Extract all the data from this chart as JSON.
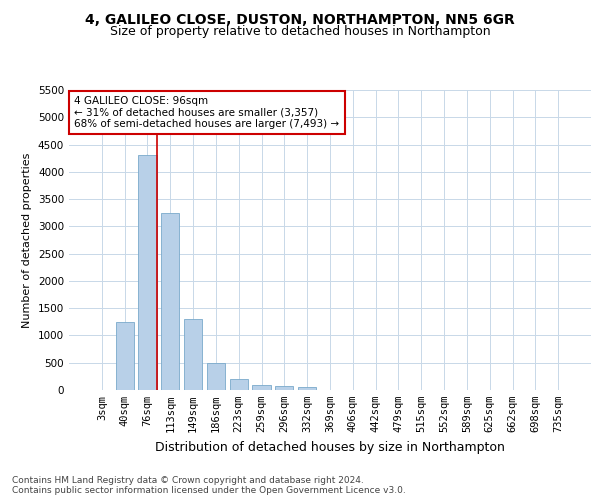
{
  "title1": "4, GALILEO CLOSE, DUSTON, NORTHAMPTON, NN5 6GR",
  "title2": "Size of property relative to detached houses in Northampton",
  "xlabel": "Distribution of detached houses by size in Northampton",
  "ylabel": "Number of detached properties",
  "categories": [
    "3sqm",
    "40sqm",
    "76sqm",
    "113sqm",
    "149sqm",
    "186sqm",
    "223sqm",
    "259sqm",
    "296sqm",
    "332sqm",
    "369sqm",
    "406sqm",
    "442sqm",
    "479sqm",
    "515sqm",
    "552sqm",
    "589sqm",
    "625sqm",
    "662sqm",
    "698sqm",
    "735sqm"
  ],
  "values": [
    0,
    1250,
    4300,
    3250,
    1300,
    500,
    200,
    100,
    75,
    50,
    0,
    0,
    0,
    0,
    0,
    0,
    0,
    0,
    0,
    0,
    0
  ],
  "bar_color": "#b8d0e8",
  "bar_edgecolor": "#7aaacb",
  "vline_x_index": 2.4,
  "vline_color": "#cc0000",
  "annotation_text": "4 GALILEO CLOSE: 96sqm\n← 31% of detached houses are smaller (3,357)\n68% of semi-detached houses are larger (7,493) →",
  "annotation_box_edgecolor": "#cc0000",
  "annotation_box_facecolor": "#ffffff",
  "ylim": [
    0,
    5500
  ],
  "yticks": [
    0,
    500,
    1000,
    1500,
    2000,
    2500,
    3000,
    3500,
    4000,
    4500,
    5000,
    5500
  ],
  "footer": "Contains HM Land Registry data © Crown copyright and database right 2024.\nContains public sector information licensed under the Open Government Licence v3.0.",
  "title1_fontsize": 10,
  "title2_fontsize": 9,
  "xlabel_fontsize": 9,
  "ylabel_fontsize": 8,
  "tick_fontsize": 7.5,
  "footer_fontsize": 6.5,
  "background_color": "#ffffff",
  "grid_color": "#c8d8e8"
}
